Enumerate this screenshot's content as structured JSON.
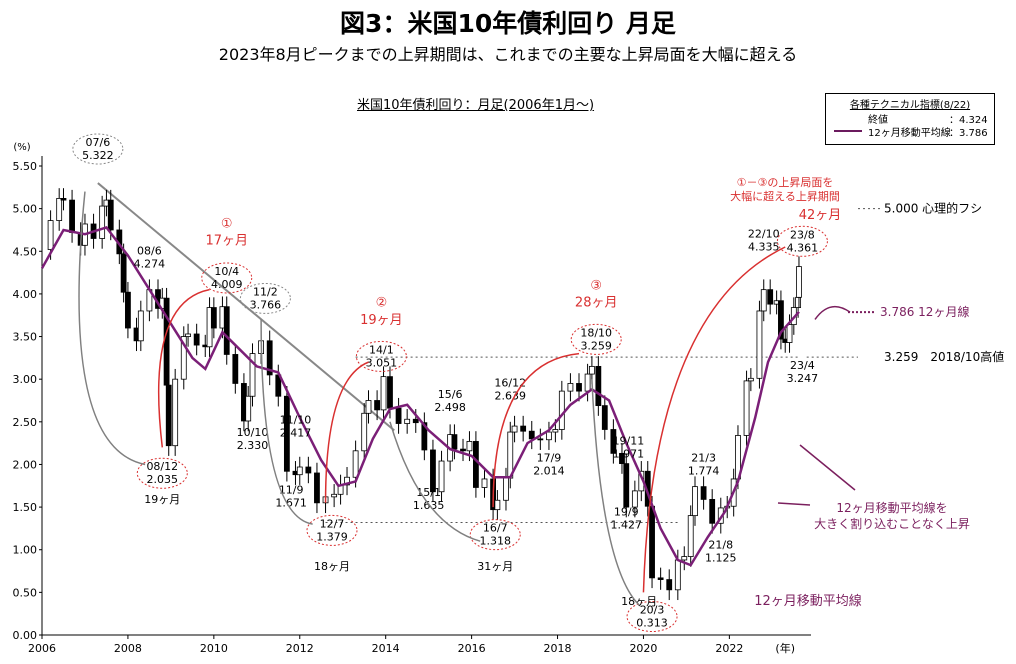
{
  "title": "図3：米国10年債利回り 月足",
  "subtitle": "2023年8月ピークまでの上昇期間は、これまでの主要な上昇局面を大幅に超える",
  "chart_title": "米国10年債利回り：月足(2006年1月～)",
  "legend": {
    "heading": "各種テクニカル指標(8/22)",
    "rows": [
      {
        "label": "終値",
        "value": "：4.324"
      },
      {
        "label": "12ヶ月移動平均線",
        "value": "：3.786"
      }
    ]
  },
  "colors": {
    "up": "#ffffff",
    "down": "#000000",
    "ma": "#7b1f77",
    "arrow_red": "#d93030",
    "arrow_gray": "#808080",
    "note_red": "#d93030",
    "note_purple": "#7b1f5e"
  },
  "chart_data": {
    "type": "candlestick",
    "ylabel": "(%)",
    "xlabel": "(年)",
    "xlim": [
      2006.0,
      2023.9
    ],
    "ylim": [
      0.0,
      5.5
    ],
    "yticks": [
      "0.00",
      "0.50",
      "1.00",
      "1.50",
      "2.00",
      "2.50",
      "3.00",
      "3.50",
      "4.00",
      "4.50",
      "5.00",
      "5.50"
    ],
    "xticks": [
      "2006",
      "2008",
      "2010",
      "2012",
      "2014",
      "2016",
      "2018",
      "2020",
      "2022"
    ],
    "monthly_close": [
      [
        2006.0,
        4.52
      ],
      [
        2006.2,
        4.86
      ],
      [
        2006.4,
        5.12
      ],
      [
        2006.5,
        5.1
      ],
      [
        2006.7,
        4.72
      ],
      [
        2006.9,
        4.57
      ],
      [
        2007.0,
        4.82
      ],
      [
        2007.2,
        4.65
      ],
      [
        2007.4,
        5.03
      ],
      [
        2007.5,
        5.1
      ],
      [
        2007.6,
        4.75
      ],
      [
        2007.8,
        4.47
      ],
      [
        2007.9,
        4.02
      ],
      [
        2008.0,
        3.6
      ],
      [
        2008.2,
        3.45
      ],
      [
        2008.3,
        3.8
      ],
      [
        2008.5,
        4.05
      ],
      [
        2008.7,
        3.83
      ],
      [
        2008.8,
        3.95
      ],
      [
        2008.9,
        2.93
      ],
      [
        2008.95,
        2.22
      ],
      [
        2009.1,
        3.0
      ],
      [
        2009.3,
        3.5
      ],
      [
        2009.4,
        3.53
      ],
      [
        2009.6,
        3.4
      ],
      [
        2009.8,
        3.38
      ],
      [
        2009.9,
        3.84
      ],
      [
        2010.0,
        3.6
      ],
      [
        2010.2,
        3.85
      ],
      [
        2010.3,
        3.29
      ],
      [
        2010.5,
        2.95
      ],
      [
        2010.7,
        2.51
      ],
      [
        2010.8,
        2.8
      ],
      [
        2010.9,
        3.3
      ],
      [
        2011.1,
        3.45
      ],
      [
        2011.3,
        3.05
      ],
      [
        2011.5,
        2.8
      ],
      [
        2011.7,
        1.92
      ],
      [
        2011.9,
        1.88
      ],
      [
        2012.0,
        1.97
      ],
      [
        2012.2,
        1.9
      ],
      [
        2012.4,
        1.55
      ],
      [
        2012.6,
        1.62
      ],
      [
        2012.8,
        1.65
      ],
      [
        2012.95,
        1.76
      ],
      [
        2013.1,
        1.85
      ],
      [
        2013.3,
        2.16
      ],
      [
        2013.5,
        2.6
      ],
      [
        2013.6,
        2.75
      ],
      [
        2013.8,
        2.64
      ],
      [
        2013.95,
        3.03
      ],
      [
        2014.1,
        2.66
      ],
      [
        2014.3,
        2.48
      ],
      [
        2014.5,
        2.53
      ],
      [
        2014.7,
        2.49
      ],
      [
        2014.9,
        2.17
      ],
      [
        2015.1,
        1.68
      ],
      [
        2015.3,
        2.04
      ],
      [
        2015.5,
        2.35
      ],
      [
        2015.6,
        2.18
      ],
      [
        2015.8,
        2.16
      ],
      [
        2015.95,
        2.27
      ],
      [
        2016.1,
        1.73
      ],
      [
        2016.3,
        1.83
      ],
      [
        2016.5,
        1.47
      ],
      [
        2016.6,
        1.58
      ],
      [
        2016.8,
        1.84
      ],
      [
        2016.9,
        2.38
      ],
      [
        2017.0,
        2.45
      ],
      [
        2017.2,
        2.39
      ],
      [
        2017.4,
        2.3
      ],
      [
        2017.6,
        2.29
      ],
      [
        2017.8,
        2.38
      ],
      [
        2017.95,
        2.41
      ],
      [
        2018.1,
        2.86
      ],
      [
        2018.3,
        2.95
      ],
      [
        2018.5,
        2.86
      ],
      [
        2018.7,
        3.06
      ],
      [
        2018.8,
        3.15
      ],
      [
        2018.95,
        2.69
      ],
      [
        2019.1,
        2.41
      ],
      [
        2019.3,
        2.13
      ],
      [
        2019.5,
        2.01
      ],
      [
        2019.6,
        1.5
      ],
      [
        2019.8,
        1.69
      ],
      [
        2019.95,
        1.92
      ],
      [
        2020.1,
        1.51
      ],
      [
        2020.2,
        0.67
      ],
      [
        2020.4,
        0.65
      ],
      [
        2020.6,
        0.53
      ],
      [
        2020.8,
        0.88
      ],
      [
        2020.95,
        0.92
      ],
      [
        2021.1,
        1.4
      ],
      [
        2021.2,
        1.74
      ],
      [
        2021.4,
        1.59
      ],
      [
        2021.6,
        1.31
      ],
      [
        2021.8,
        1.49
      ],
      [
        2021.95,
        1.51
      ],
      [
        2022.1,
        1.83
      ],
      [
        2022.2,
        2.34
      ],
      [
        2022.4,
        2.98
      ],
      [
        2022.5,
        3.01
      ],
      [
        2022.7,
        3.8
      ],
      [
        2022.8,
        4.05
      ],
      [
        2022.95,
        3.88
      ],
      [
        2023.1,
        3.92
      ],
      [
        2023.2,
        3.47
      ],
      [
        2023.3,
        3.43
      ],
      [
        2023.4,
        3.64
      ],
      [
        2023.5,
        3.84
      ],
      [
        2023.6,
        3.96
      ],
      [
        2023.62,
        4.32
      ]
    ],
    "moving_average_12m": [
      [
        2006.0,
        4.3
      ],
      [
        2006.5,
        4.75
      ],
      [
        2007.0,
        4.7
      ],
      [
        2007.5,
        4.78
      ],
      [
        2008.0,
        4.45
      ],
      [
        2008.5,
        4.05
      ],
      [
        2009.0,
        3.65
      ],
      [
        2009.5,
        3.25
      ],
      [
        2009.8,
        3.12
      ],
      [
        2010.2,
        3.55
      ],
      [
        2010.6,
        3.35
      ],
      [
        2011.0,
        3.15
      ],
      [
        2011.5,
        3.08
      ],
      [
        2012.0,
        2.55
      ],
      [
        2012.5,
        2.05
      ],
      [
        2012.9,
        1.75
      ],
      [
        2013.3,
        1.8
      ],
      [
        2013.7,
        2.3
      ],
      [
        2014.1,
        2.65
      ],
      [
        2014.5,
        2.7
      ],
      [
        2015.0,
        2.4
      ],
      [
        2015.5,
        2.18
      ],
      [
        2016.0,
        2.1
      ],
      [
        2016.5,
        1.85
      ],
      [
        2016.9,
        1.85
      ],
      [
        2017.3,
        2.25
      ],
      [
        2017.8,
        2.4
      ],
      [
        2018.3,
        2.7
      ],
      [
        2018.8,
        2.88
      ],
      [
        2019.2,
        2.75
      ],
      [
        2019.6,
        2.25
      ],
      [
        2020.0,
        1.8
      ],
      [
        2020.4,
        1.25
      ],
      [
        2020.8,
        0.88
      ],
      [
        2021.1,
        0.82
      ],
      [
        2021.5,
        1.15
      ],
      [
        2021.9,
        1.45
      ],
      [
        2022.2,
        1.8
      ],
      [
        2022.6,
        2.55
      ],
      [
        2022.9,
        3.2
      ],
      [
        2023.2,
        3.55
      ],
      [
        2023.62,
        3.79
      ]
    ],
    "annotations": {
      "peak_0706": [
        "07/6",
        "5.322"
      ],
      "p_0806": [
        "08/6",
        "4.274"
      ],
      "p_1004": [
        "10/4",
        "4.009"
      ],
      "p_1102": [
        "11/2",
        "3.766"
      ],
      "p_1110": [
        "11/10",
        "2.417"
      ],
      "p_1010": [
        "10/10",
        "2.330"
      ],
      "p_1109": [
        "11/9",
        "1.671"
      ],
      "trough_1207": [
        "12/7",
        "1.379"
      ],
      "p_1401": [
        "14/1",
        "3.051"
      ],
      "p_1506": [
        "15/6",
        "2.498"
      ],
      "p_1501": [
        "15/1",
        "1.635"
      ],
      "p_1612": [
        "16/12",
        "2.639"
      ],
      "p_1709": [
        "17/9",
        "2.014"
      ],
      "trough_1607": [
        "16/7",
        "1.318"
      ],
      "p_1810": [
        "18/10",
        "3.259"
      ],
      "p_1911": [
        "19/11",
        "1.971"
      ],
      "p_1909": [
        "19/9",
        "1.427"
      ],
      "trough_2003": [
        "20/3",
        "0.313"
      ],
      "p_2103": [
        "21/3",
        "1.774"
      ],
      "p_2108": [
        "21/8",
        "1.125"
      ],
      "p_2210": [
        "22/10",
        "4.335"
      ],
      "p_2308": [
        "23/8",
        "4.361"
      ],
      "p_2304": [
        "23/4",
        "3.247"
      ],
      "trough_0812": [
        "08/12",
        "2.035"
      ],
      "dur_19_a": "19ヶ月",
      "dur_18_a": "18ヶ月",
      "dur_31": "31ヶ月",
      "dur_18_b": "18ヶ月",
      "rise1_no": "①",
      "rise1_dur": "17ヶ月",
      "rise2_no": "②",
      "rise2_dur": "19ヶ月",
      "rise3_no": "③",
      "rise3_dur": "28ヶ月",
      "rise_now_l1": "①－③の上昇局面を",
      "rise_now_l2": "大幅に超える上昇期間",
      "rise_now_dur": "42ヶ月",
      "line_5000": "5.000 心理的フシ",
      "line_3786": "3.786 12ヶ月線",
      "line_3259": "3.259　2018/10高値",
      "ma_note_l1": "12ヶ月移動平均線を",
      "ma_note_l2": "大きく割り込むことなく上昇",
      "ma_label": "12ヶ月移動平均線"
    }
  }
}
